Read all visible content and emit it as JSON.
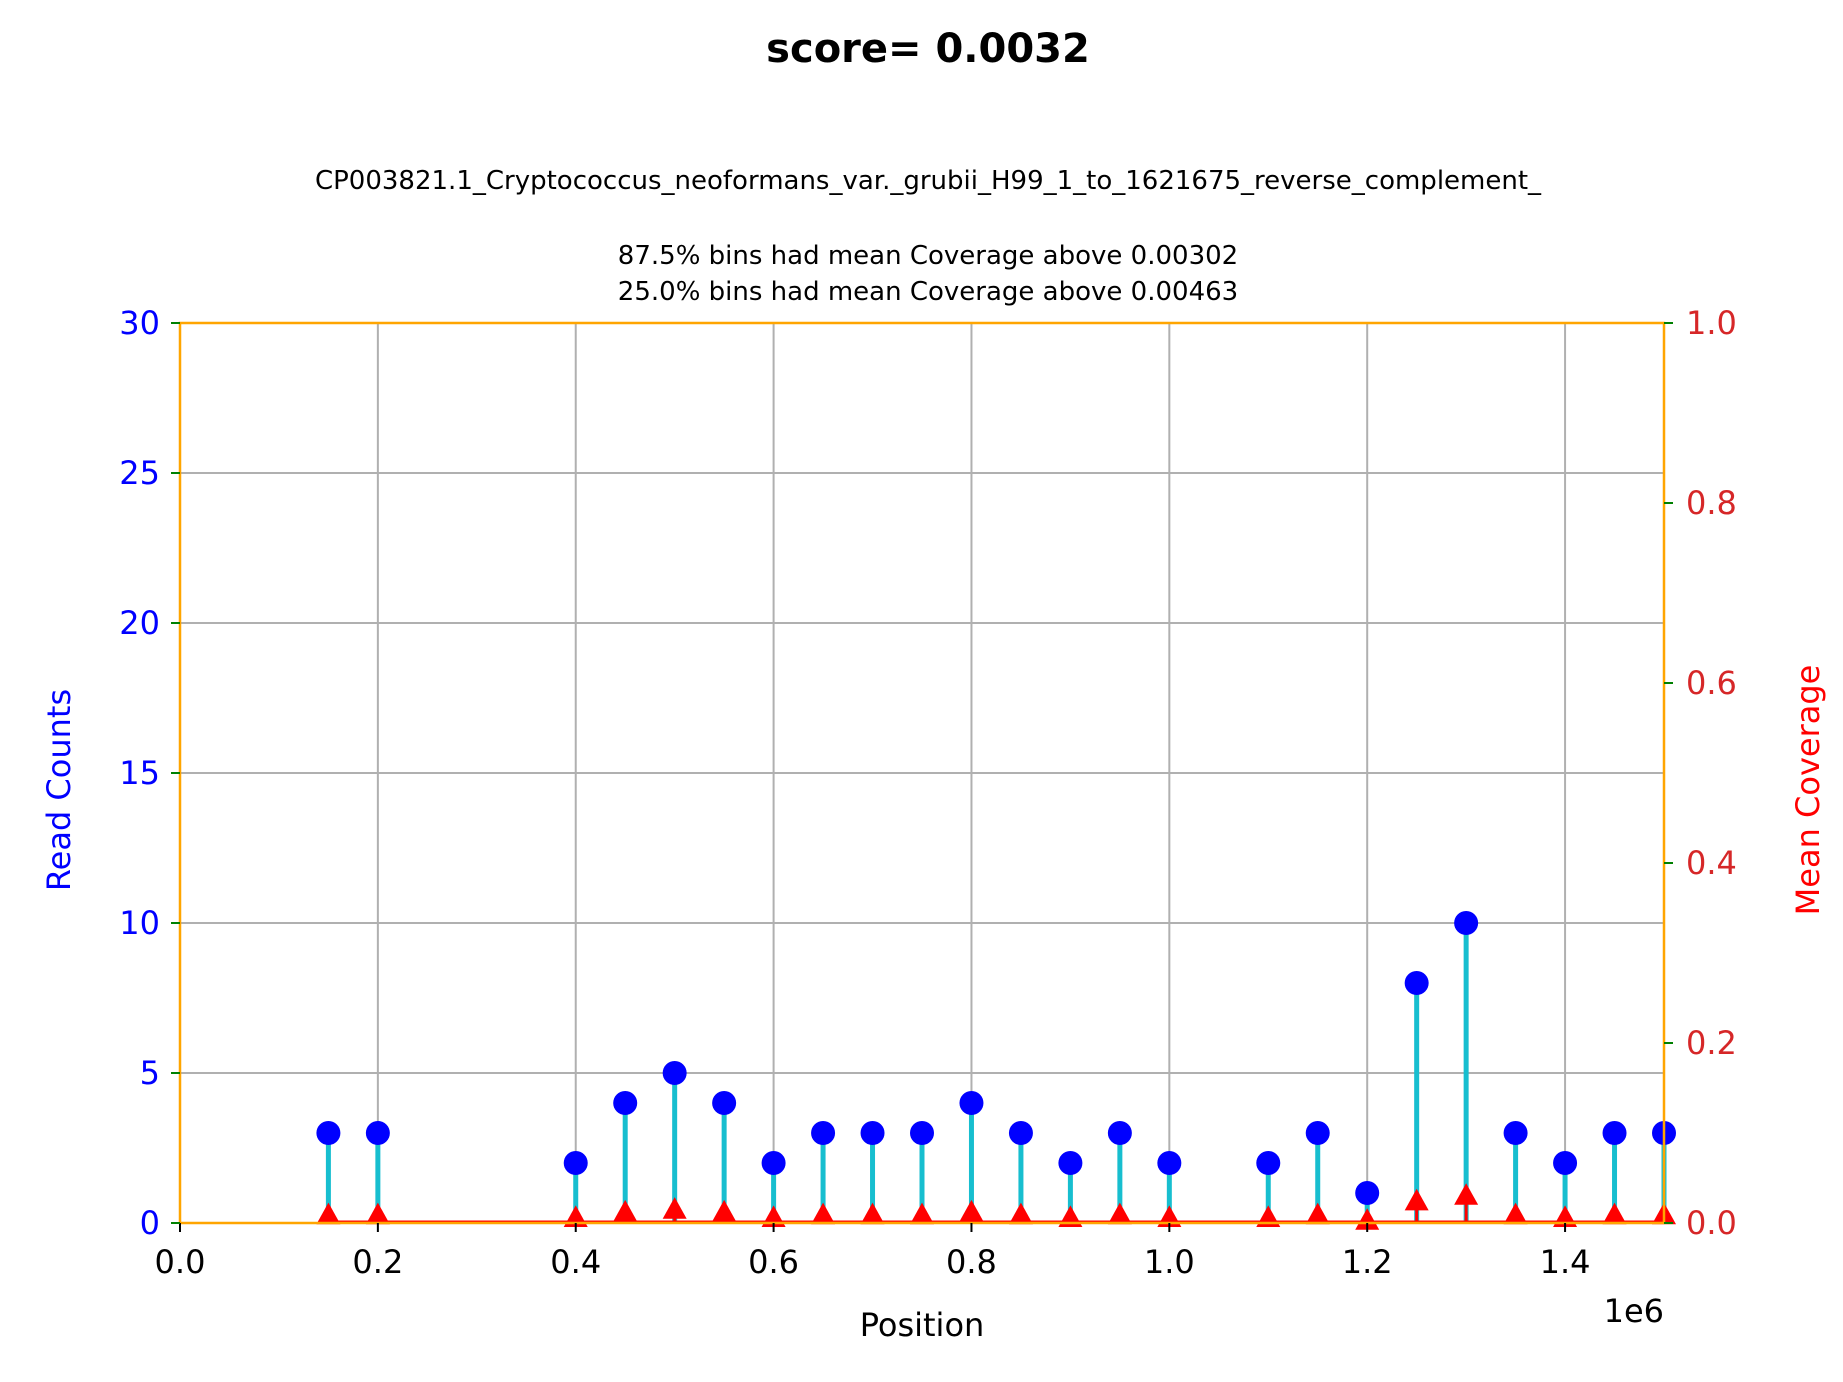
{
  "chart_data": {
    "type": "stem",
    "title": "score= 0.0032",
    "subtitle": "CP003821.1_Cryptococcus_neoformans_var._grubii_H99_1_to_1621675_reverse_complement_",
    "notes": [
      "87.5% bins had mean Coverage above 0.00302",
      "25.0% bins had mean Coverage above 0.00463"
    ],
    "xlabel": "Position",
    "x_offset_label": "1e6",
    "ylabel_left": "Read Counts",
    "ylabel_right": "Mean Coverage",
    "xlim": [
      0,
      1.5
    ],
    "ylim_left": [
      0,
      30
    ],
    "ylim_right": [
      0,
      1.0
    ],
    "x_ticks": [
      "0.0",
      "0.2",
      "0.4",
      "0.6",
      "0.8",
      "1.0",
      "1.2",
      "1.4"
    ],
    "y_ticks_left": [
      "0",
      "5",
      "10",
      "15",
      "20",
      "25",
      "30"
    ],
    "y_ticks_right": [
      "0.0",
      "0.2",
      "0.4",
      "0.6",
      "0.8",
      "1.0"
    ],
    "grid": true,
    "x": [
      0.15,
      0.2,
      0.4,
      0.45,
      0.5,
      0.55,
      0.6,
      0.65,
      0.7,
      0.75,
      0.8,
      0.85,
      0.9,
      0.95,
      1.0,
      1.1,
      1.15,
      1.2,
      1.25,
      1.3,
      1.35,
      1.4,
      1.45,
      1.5
    ],
    "series": [
      {
        "name": "Read Counts",
        "axis": "left",
        "values": [
          3,
          3,
          2,
          4,
          5,
          4,
          2,
          3,
          3,
          3,
          4,
          3,
          2,
          3,
          2,
          2,
          3,
          1,
          8,
          10,
          3,
          2,
          3,
          3
        ]
      },
      {
        "name": "Mean Coverage",
        "axis": "right",
        "values": [
          0.0093,
          0.0093,
          0.0062,
          0.0123,
          0.0154,
          0.0123,
          0.0062,
          0.0093,
          0.0093,
          0.0093,
          0.0123,
          0.0093,
          0.0062,
          0.0093,
          0.0062,
          0.0062,
          0.0093,
          0.0031,
          0.0247,
          0.0309,
          0.0093,
          0.0062,
          0.0093,
          0.0093
        ]
      }
    ],
    "colors": {
      "count_marker": "#0000ff",
      "count_stem": "#17becf",
      "coverage_marker": "#ff0000",
      "coverage_baseline": "#ff0000",
      "frame": "#ffa500",
      "left_axis": "#0000ff",
      "right_tick_labels": "#d62728",
      "right_tick_marks": "#008000",
      "right_label": "#ff0000",
      "grid": "#b0b0b0"
    }
  }
}
